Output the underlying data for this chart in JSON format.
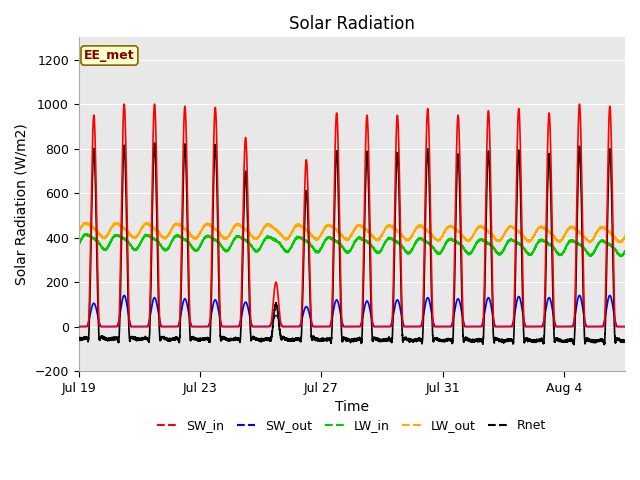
{
  "title": "Solar Radiation",
  "xlabel": "Time",
  "ylabel": "Solar Radiation (W/m2)",
  "ylim": [
    -200,
    1300
  ],
  "yticks": [
    -200,
    0,
    200,
    400,
    600,
    800,
    1000,
    1200
  ],
  "num_days": 18,
  "colors": {
    "SW_in": "#ff0000",
    "SW_out": "#0000ff",
    "LW_in": "#00cc00",
    "LW_out": "#ffaa00",
    "Rnet": "#000000"
  },
  "label_box": "EE_met",
  "label_box_color": "#ffffcc",
  "label_box_edge": "#886600",
  "label_box_text": "#880000",
  "background_color": "#e8e8e8",
  "grid_color": "#ffffff",
  "title_fontsize": 12,
  "axis_fontsize": 10,
  "tick_fontsize": 9,
  "legend_fontsize": 9,
  "xtick_labels": [
    "Jul 19",
    "Jul 23",
    "Jul 27",
    "Jul 31",
    "Aug 4"
  ],
  "xtick_positions": [
    0,
    4,
    8,
    12,
    16
  ],
  "sw_in_peaks": [
    950,
    1000,
    1000,
    990,
    985,
    850,
    200,
    750,
    960,
    950,
    950,
    980,
    950,
    970,
    980,
    960,
    1000,
    990
  ],
  "sw_out_peaks": [
    105,
    140,
    130,
    125,
    120,
    110,
    50,
    90,
    120,
    115,
    120,
    130,
    125,
    130,
    135,
    130,
    140,
    140
  ],
  "lw_in_mean": 385,
  "lw_out_mean": 435,
  "lw_amplitude": 30,
  "lw_out_amplitude": 30,
  "rnet_night": -60
}
